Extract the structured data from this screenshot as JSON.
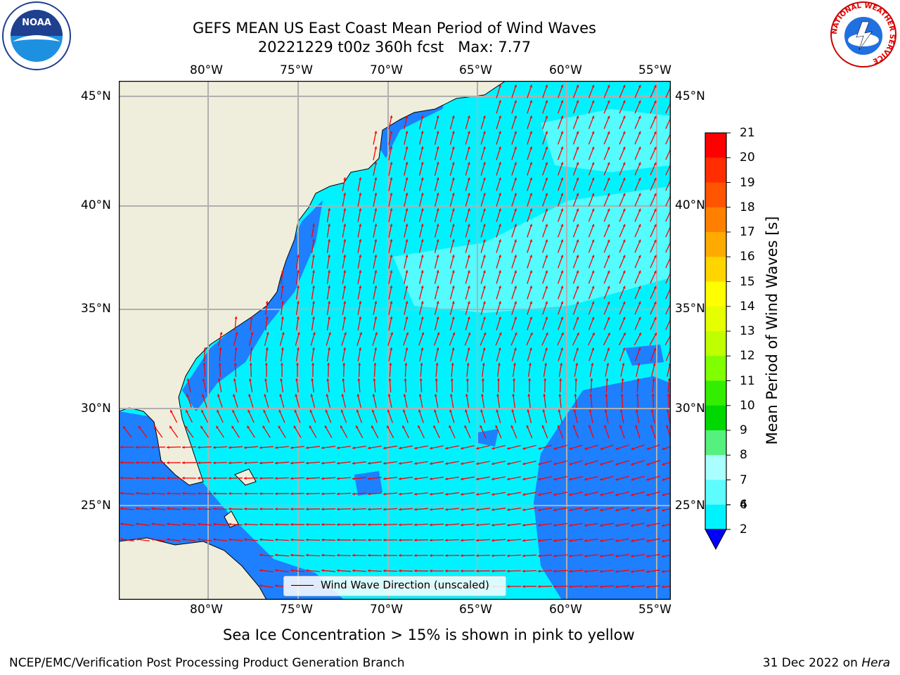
{
  "title": {
    "line1": "GEFS MEAN US East Coast Mean Period of Wind Waves",
    "line2": "20221229 t00z 360h fcst   Max: 7.77"
  },
  "logos": {
    "left": {
      "text": "NOAA",
      "icon": "noaa-logo-icon"
    },
    "right": {
      "text": "NATIONAL WEATHER SERVICE",
      "icon": "nws-logo-icon"
    }
  },
  "map": {
    "lon_labels": [
      "80°W",
      "75°W",
      "70°W",
      "65°W",
      "60°W",
      "55°W"
    ],
    "lat_labels": [
      "45°N",
      "40°N",
      "35°N",
      "30°N",
      "25°N"
    ],
    "colors": {
      "land": "#efeddc",
      "ocean_2_4": "#1e7fff",
      "ocean_4_6": "#00f2ff",
      "ocean_6_7": "#5dfcff",
      "gridline": "#b0b0b0",
      "arrow": "#ff0000"
    },
    "legend": "Wind Wave Direction (unscaled)"
  },
  "colorbar": {
    "label": "Mean Period of Wind Waves [s]",
    "ticks": [
      "21",
      "20",
      "19",
      "18",
      "17",
      "16",
      "15",
      "14",
      "13",
      "12",
      "11",
      "10",
      "9",
      "8",
      "7",
      "6",
      "4",
      "2"
    ],
    "colors": [
      "#ff0000",
      "#ff2d00",
      "#ff5500",
      "#ff8000",
      "#ffaa00",
      "#ffd500",
      "#ffff00",
      "#e6ff00",
      "#bfff00",
      "#7fff00",
      "#33ee00",
      "#00d800",
      "#55f07d",
      "#a9ffff",
      "#5dfcff",
      "#00f2ff",
      "#1e7fff",
      "#0000ff"
    ]
  },
  "note": "Sea Ice Concentration > 15% is shown in pink to yellow",
  "footer": {
    "left": "NCEP/EMC/Verification Post Processing Product Generation Branch",
    "right_date": "31 Dec 2022 on ",
    "right_machine": "Hera"
  }
}
